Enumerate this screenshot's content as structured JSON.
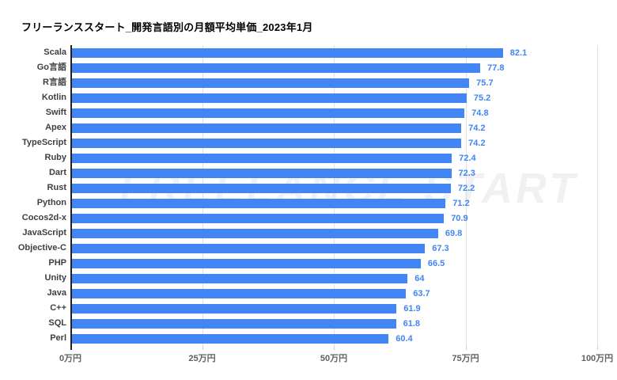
{
  "title": "フリーランススタート_開発言語別の月額平均単価_2023年1月",
  "watermark": "FREELANCE START",
  "colors": {
    "bar": "#4285f4",
    "value_label": "#4285f4",
    "category_label": "#404040",
    "tick_label": "#616161",
    "axis_line": "#212121",
    "gridline": "#e2e2e2",
    "background": "#ffffff"
  },
  "chart_data": {
    "type": "bar",
    "orientation": "horizontal",
    "title": "フリーランススタート_開発言語別の月額平均単価_2023年1月",
    "unit": "万円",
    "xlim": [
      0,
      100
    ],
    "grid": true,
    "legend_position": "none",
    "categories": [
      "Scala",
      "Go言語",
      "R言語",
      "Kotlin",
      "Swift",
      "Apex",
      "TypeScript",
      "Ruby",
      "Dart",
      "Rust",
      "Python",
      "Cocos2d-x",
      "JavaScript",
      "Objective-C",
      "PHP",
      "Unity",
      "Java",
      "C++",
      "SQL",
      "Perl"
    ],
    "values": [
      82.1,
      77.8,
      75.7,
      75.2,
      74.8,
      74.2,
      74.2,
      72.4,
      72.3,
      72.2,
      71.2,
      70.9,
      69.8,
      67.3,
      66.5,
      64,
      63.7,
      61.9,
      61.8,
      60.4
    ],
    "value_labels": [
      "82.1",
      "77.8",
      "75.7",
      "75.2",
      "74.8",
      "74.2",
      "74.2",
      "72.4",
      "72.3",
      "72.2",
      "71.2",
      "70.9",
      "69.8",
      "67.3",
      "66.5",
      "64",
      "63.7",
      "61.9",
      "61.8",
      "60.4"
    ],
    "x_ticks": [
      "0万円",
      "25万円",
      "50万円",
      "75万円",
      "100万円"
    ]
  }
}
